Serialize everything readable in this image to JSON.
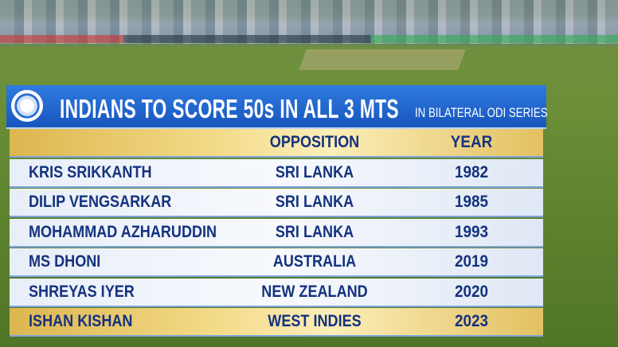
{
  "graphic": {
    "title": "INDIANS TO SCORE 50s IN ALL 3 MTS",
    "subtitle": "IN BILATERAL ODI SERIES",
    "table": {
      "header": [
        "OPPOSITION",
        "YEAR"
      ],
      "rows": [
        [
          "KRIS SRIKKANTH",
          "SRI LANKA",
          1982
        ],
        [
          "DILIP VENGSARKAR",
          "SRI LANKA",
          1985
        ],
        [
          "MOHAMMAD AZHARUDDIN",
          "SRI LANKA",
          1993
        ],
        [
          "MS DHONI",
          "AUSTRALIA",
          2019
        ],
        [
          "SHREYAS IYER",
          "NEW ZEALAND",
          2020
        ],
        [
          "ISHAN KISHAN",
          "WEST INDIES",
          2023
        ]
      ]
    }
  }
}
